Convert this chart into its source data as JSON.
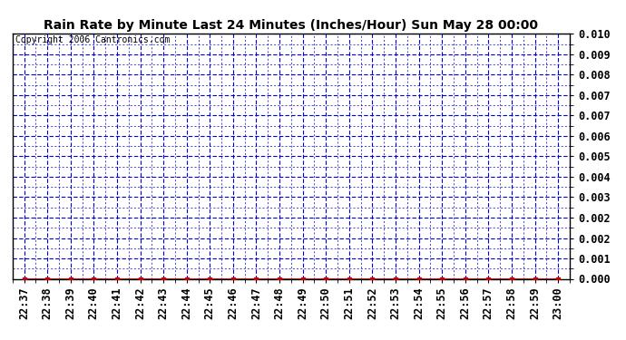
{
  "title": "Rain Rate by Minute Last 24 Minutes (Inches/Hour) Sun May 28 00:00",
  "copyright_text": "Copyright 2006 Cantronics.com",
  "x_labels": [
    "22:37",
    "22:38",
    "22:39",
    "22:40",
    "22:41",
    "22:42",
    "22:43",
    "22:44",
    "22:45",
    "22:46",
    "22:47",
    "22:48",
    "22:49",
    "22:50",
    "22:51",
    "22:52",
    "22:53",
    "22:54",
    "22:55",
    "22:56",
    "22:57",
    "22:58",
    "22:59",
    "23:00"
  ],
  "y_values": [
    0,
    0,
    0,
    0,
    0,
    0,
    0,
    0,
    0,
    0,
    0,
    0,
    0,
    0,
    0,
    0,
    0,
    0,
    0,
    0,
    0,
    0,
    0,
    0
  ],
  "ylim": [
    0.0,
    0.01
  ],
  "ytick_labels": [
    "0.000",
    "0.001",
    "0.002",
    "0.002",
    "0.003",
    "0.004",
    "0.005",
    "0.006",
    "0.007",
    "0.007",
    "0.008",
    "0.009",
    "0.010"
  ],
  "line_color": "#cc0000",
  "marker_color": "#cc0000",
  "grid_major_color": "#0000dd",
  "grid_minor_color": "#0000dd",
  "background_color": "#ffffff",
  "plot_bg_color": "#ffffff",
  "title_fontsize": 10,
  "copyright_fontsize": 7,
  "tick_fontsize": 8.5,
  "border_color": "#000000"
}
